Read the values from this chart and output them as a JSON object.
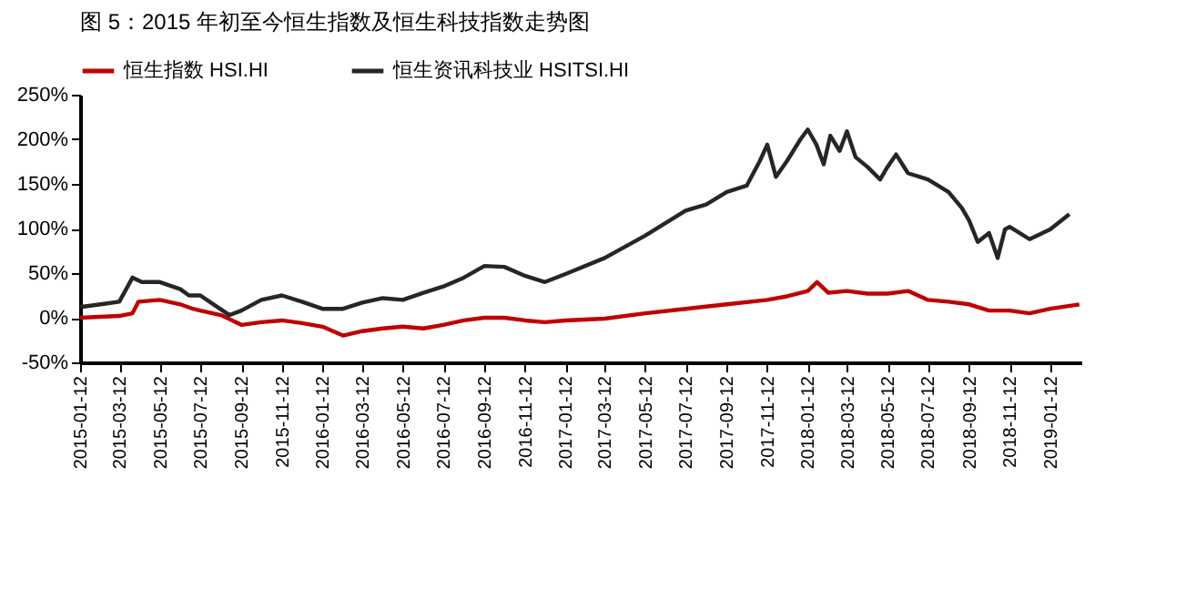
{
  "chart_data": {
    "type": "line",
    "title": "图 5：2015 年初至今恒生指数及恒生科技指数走势图",
    "series": [
      {
        "name": "恒生指数 HSI.HI",
        "color": "#c00000",
        "x": [
          "2015-01-12",
          "2015-03-12",
          "2015-04-01",
          "2015-04-10",
          "2015-05-12",
          "2015-06-12",
          "2015-07-01",
          "2015-07-12",
          "2015-08-12",
          "2015-09-12",
          "2015-10-12",
          "2015-11-12",
          "2015-12-12",
          "2016-01-12",
          "2016-02-12",
          "2016-03-12",
          "2016-04-12",
          "2016-05-12",
          "2016-06-12",
          "2016-07-12",
          "2016-08-12",
          "2016-09-12",
          "2016-10-12",
          "2016-11-12",
          "2016-12-12",
          "2017-01-12",
          "2017-03-12",
          "2017-05-12",
          "2017-07-12",
          "2017-09-12",
          "2017-11-12",
          "2017-12-12",
          "2018-01-12",
          "2018-01-26",
          "2018-02-12",
          "2018-03-12",
          "2018-04-12",
          "2018-05-12",
          "2018-06-12",
          "2018-07-12",
          "2018-08-12",
          "2018-09-12",
          "2018-10-12",
          "2018-11-12",
          "2018-12-12",
          "2019-01-12",
          "2019-02-25"
        ],
        "values": [
          0,
          2,
          5,
          18,
          20,
          15,
          10,
          8,
          3,
          -8,
          -5,
          -3,
          -6,
          -10,
          -20,
          -15,
          -12,
          -10,
          -12,
          -8,
          -3,
          0,
          0,
          -3,
          -5,
          -3,
          -1,
          5,
          10,
          15,
          20,
          24,
          30,
          40,
          28,
          30,
          27,
          27,
          30,
          20,
          18,
          15,
          8,
          8,
          5,
          10,
          15
        ]
      },
      {
        "name": "恒生资讯科技业 HSITSI.HI",
        "color": "#262626",
        "x": [
          "2015-01-12",
          "2015-02-12",
          "2015-03-12",
          "2015-04-01",
          "2015-04-15",
          "2015-05-12",
          "2015-06-12",
          "2015-06-25",
          "2015-07-12",
          "2015-08-01",
          "2015-08-25",
          "2015-09-12",
          "2015-10-12",
          "2015-11-12",
          "2015-12-12",
          "2016-01-12",
          "2016-02-12",
          "2016-03-12",
          "2016-04-12",
          "2016-05-12",
          "2016-06-12",
          "2016-07-12",
          "2016-08-12",
          "2016-09-12",
          "2016-10-12",
          "2016-11-12",
          "2016-12-12",
          "2017-01-12",
          "2017-03-12",
          "2017-05-12",
          "2017-07-12",
          "2017-08-12",
          "2017-09-12",
          "2017-10-12",
          "2017-11-01",
          "2017-11-12",
          "2017-11-25",
          "2017-12-12",
          "2018-01-01",
          "2018-01-12",
          "2018-01-25",
          "2018-02-05",
          "2018-02-15",
          "2018-03-01",
          "2018-03-12",
          "2018-03-25",
          "2018-04-12",
          "2018-05-01",
          "2018-05-12",
          "2018-05-25",
          "2018-06-12",
          "2018-07-12",
          "2018-08-12",
          "2018-09-01",
          "2018-09-12",
          "2018-09-25",
          "2018-10-12",
          "2018-10-25",
          "2018-11-05",
          "2018-11-12",
          "2018-12-12",
          "2019-01-12",
          "2019-02-10"
        ],
        "values": [
          12,
          15,
          18,
          45,
          40,
          40,
          32,
          25,
          25,
          15,
          3,
          8,
          20,
          25,
          18,
          10,
          10,
          17,
          22,
          20,
          28,
          35,
          45,
          58,
          57,
          47,
          40,
          49,
          67,
          92,
          120,
          127,
          141,
          148,
          176,
          194,
          158,
          176,
          200,
          211,
          194,
          172,
          204,
          187,
          209,
          180,
          169,
          155,
          169,
          183,
          162,
          155,
          141,
          123,
          109,
          85,
          95,
          67,
          99,
          102,
          88,
          99,
          116
        ]
      }
    ],
    "xlim": [
      "2015-01-12",
      "2019-02-28"
    ],
    "xticks": [
      "2015-01-12",
      "2015-03-12",
      "2015-05-12",
      "2015-07-12",
      "2015-09-12",
      "2015-11-12",
      "2016-01-12",
      "2016-03-12",
      "2016-05-12",
      "2016-07-12",
      "2016-09-12",
      "2016-11-12",
      "2017-01-12",
      "2017-03-12",
      "2017-05-12",
      "2017-07-12",
      "2017-09-12",
      "2017-11-12",
      "2018-01-12",
      "2018-03-12",
      "2018-05-12",
      "2018-07-12",
      "2018-09-12",
      "2018-11-12",
      "2019-01-12"
    ],
    "ylim": [
      -50,
      250
    ],
    "yticks": [
      {
        "value": -50,
        "label": "-50%"
      },
      {
        "value": 0,
        "label": "0%"
      },
      {
        "value": 50,
        "label": "50%"
      },
      {
        "value": 100,
        "label": "100%"
      },
      {
        "value": 150,
        "label": "150%"
      },
      {
        "value": 200,
        "label": "200%"
      },
      {
        "value": 250,
        "label": "250%"
      }
    ],
    "grid": false,
    "legend": "top",
    "marker": "none",
    "line_style": "solid"
  }
}
